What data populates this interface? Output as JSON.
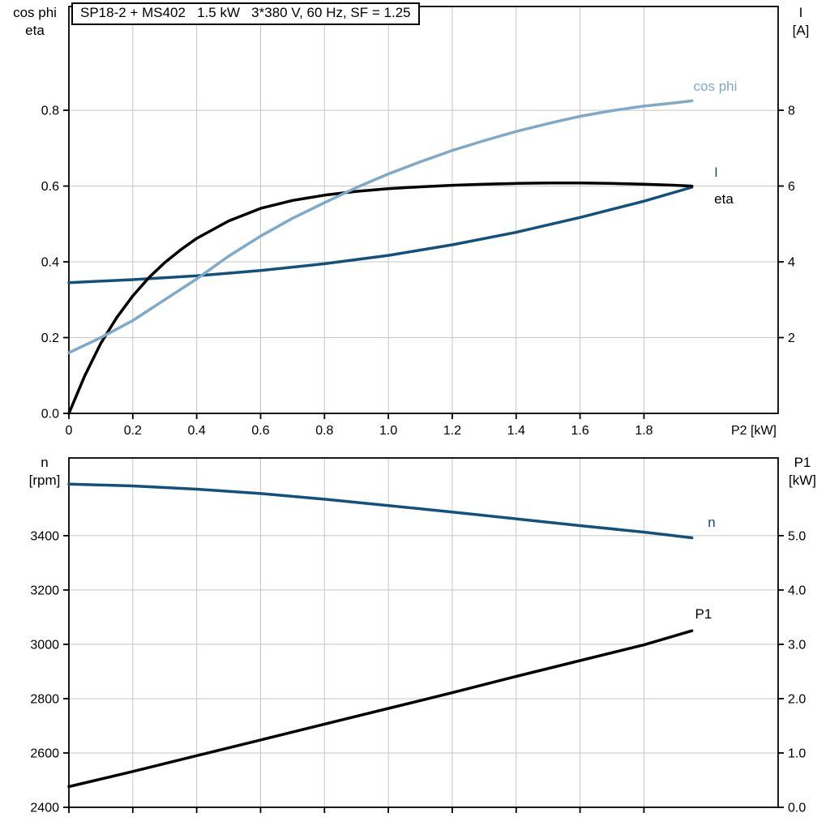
{
  "colors": {
    "light_blue": "#7FA8C9",
    "dark_blue": "#12507E",
    "black": "#000000",
    "grid": "#C6C6C6",
    "frame": "#000000"
  },
  "chart_data": [
    {
      "type": "line",
      "title": "SP18-2 + MS402   1.5 kW   3*380 V, 60 Hz, SF = 1.25",
      "x_label": "P2 [kW]",
      "x_range": [
        0,
        2.22
      ],
      "x_ticks": [
        {
          "v": 0,
          "label": "0"
        },
        {
          "v": 0.2,
          "label": "0.2"
        },
        {
          "v": 0.4,
          "label": "0.4"
        },
        {
          "v": 0.6,
          "label": "0.6"
        },
        {
          "v": 0.8,
          "label": "0.8"
        },
        {
          "v": 1.0,
          "label": "1.0"
        },
        {
          "v": 1.2,
          "label": "1.2"
        },
        {
          "v": 1.4,
          "label": "1.4"
        },
        {
          "v": 1.6,
          "label": "1.6"
        },
        {
          "v": 1.8,
          "label": "1.8"
        }
      ],
      "left_axis": {
        "header": [
          "cos phi",
          "eta"
        ],
        "range": [
          0,
          1.074
        ],
        "ticks": [
          {
            "v": 0.0,
            "label": "0.0"
          },
          {
            "v": 0.2,
            "label": "0.2"
          },
          {
            "v": 0.4,
            "label": "0.4"
          },
          {
            "v": 0.6,
            "label": "0.6"
          },
          {
            "v": 0.8,
            "label": "0.8"
          }
        ]
      },
      "right_axis": {
        "header": [
          "I",
          "[A]"
        ],
        "range": [
          0,
          10.74
        ],
        "ticks": [
          {
            "v": 2,
            "label": "2"
          },
          {
            "v": 4,
            "label": "4"
          },
          {
            "v": 6,
            "label": "6"
          },
          {
            "v": 8,
            "label": "8"
          }
        ]
      },
      "grid": true,
      "legend_position": "inline-labels",
      "series": [
        {
          "name": "I",
          "axis": "right",
          "color": "#12507E",
          "label_at": [
            2.02,
            6.35
          ],
          "points": [
            [
              0,
              3.45
            ],
            [
              0.2,
              3.53
            ],
            [
              0.4,
              3.63
            ],
            [
              0.6,
              3.77
            ],
            [
              0.8,
              3.95
            ],
            [
              1.0,
              4.17
            ],
            [
              1.2,
              4.45
            ],
            [
              1.4,
              4.78
            ],
            [
              1.6,
              5.17
            ],
            [
              1.8,
              5.6
            ],
            [
              1.95,
              5.97
            ]
          ]
        },
        {
          "name": "eta",
          "axis": "left",
          "color": "#000000",
          "label_at": [
            2.02,
            0.565
          ],
          "points": [
            [
              0,
              0
            ],
            [
              0.05,
              0.1
            ],
            [
              0.1,
              0.185
            ],
            [
              0.15,
              0.253
            ],
            [
              0.2,
              0.31
            ],
            [
              0.25,
              0.358
            ],
            [
              0.3,
              0.398
            ],
            [
              0.35,
              0.432
            ],
            [
              0.4,
              0.462
            ],
            [
              0.5,
              0.508
            ],
            [
              0.6,
              0.541
            ],
            [
              0.7,
              0.562
            ],
            [
              0.8,
              0.576
            ],
            [
              0.9,
              0.586
            ],
            [
              1.0,
              0.593
            ],
            [
              1.1,
              0.598
            ],
            [
              1.2,
              0.602
            ],
            [
              1.3,
              0.605
            ],
            [
              1.4,
              0.607
            ],
            [
              1.5,
              0.608
            ],
            [
              1.6,
              0.608
            ],
            [
              1.7,
              0.607
            ],
            [
              1.8,
              0.605
            ],
            [
              1.9,
              0.602
            ],
            [
              1.95,
              0.6
            ]
          ]
        },
        {
          "name": "cos phi",
          "axis": "left",
          "color": "#7FA8C9",
          "label_at": [
            1.955,
            0.862
          ],
          "points": [
            [
              0,
              0.16
            ],
            [
              0.1,
              0.2
            ],
            [
              0.2,
              0.245
            ],
            [
              0.3,
              0.3
            ],
            [
              0.4,
              0.355
            ],
            [
              0.5,
              0.415
            ],
            [
              0.6,
              0.468
            ],
            [
              0.7,
              0.515
            ],
            [
              0.8,
              0.556
            ],
            [
              0.9,
              0.596
            ],
            [
              1.0,
              0.632
            ],
            [
              1.1,
              0.664
            ],
            [
              1.2,
              0.694
            ],
            [
              1.3,
              0.72
            ],
            [
              1.4,
              0.744
            ],
            [
              1.5,
              0.765
            ],
            [
              1.6,
              0.784
            ],
            [
              1.7,
              0.799
            ],
            [
              1.8,
              0.811
            ],
            [
              1.9,
              0.82
            ],
            [
              1.95,
              0.825
            ]
          ]
        }
      ]
    },
    {
      "type": "line",
      "title": "",
      "x_label": "",
      "x_range": [
        0,
        2.22
      ],
      "x_ticks": [
        {
          "v": 0,
          "label": ""
        },
        {
          "v": 0.2,
          "label": ""
        },
        {
          "v": 0.4,
          "label": ""
        },
        {
          "v": 0.6,
          "label": ""
        },
        {
          "v": 0.8,
          "label": ""
        },
        {
          "v": 1.0,
          "label": ""
        },
        {
          "v": 1.2,
          "label": ""
        },
        {
          "v": 1.4,
          "label": ""
        },
        {
          "v": 1.6,
          "label": ""
        },
        {
          "v": 1.8,
          "label": ""
        }
      ],
      "left_axis": {
        "header": [
          "n",
          "[rpm]"
        ],
        "range": [
          2400,
          3686
        ],
        "ticks": [
          {
            "v": 2400,
            "label": "2400"
          },
          {
            "v": 2600,
            "label": "2600"
          },
          {
            "v": 2800,
            "label": "2800"
          },
          {
            "v": 3000,
            "label": "3000"
          },
          {
            "v": 3200,
            "label": "3200"
          },
          {
            "v": 3400,
            "label": "3400"
          }
        ]
      },
      "right_axis": {
        "header": [
          "P1",
          "[kW]"
        ],
        "range": [
          0,
          6.43
        ],
        "ticks": [
          {
            "v": 0.0,
            "label": "0.0"
          },
          {
            "v": 1.0,
            "label": "1.0"
          },
          {
            "v": 2.0,
            "label": "2.0"
          },
          {
            "v": 3.0,
            "label": "3.0"
          },
          {
            "v": 4.0,
            "label": "4.0"
          },
          {
            "v": 5.0,
            "label": "5.0"
          }
        ]
      },
      "grid": true,
      "legend_position": "inline-labels",
      "series": [
        {
          "name": "n",
          "axis": "left",
          "color": "#12507E",
          "label_at": [
            2.0,
            3448
          ],
          "points": [
            [
              0,
              3590
            ],
            [
              0.2,
              3583
            ],
            [
              0.4,
              3571
            ],
            [
              0.6,
              3555
            ],
            [
              0.8,
              3534
            ],
            [
              1.0,
              3511
            ],
            [
              1.2,
              3487
            ],
            [
              1.4,
              3462
            ],
            [
              1.6,
              3437
            ],
            [
              1.8,
              3413
            ],
            [
              1.95,
              3392
            ]
          ]
        },
        {
          "name": "P1",
          "axis": "right",
          "color": "#000000",
          "label_at": [
            1.96,
            3.55
          ],
          "points": [
            [
              0,
              0.38
            ],
            [
              0.2,
              0.66
            ],
            [
              0.4,
              0.95
            ],
            [
              0.6,
              1.24
            ],
            [
              0.8,
              1.53
            ],
            [
              1.0,
              1.82
            ],
            [
              1.2,
              2.11
            ],
            [
              1.4,
              2.41
            ],
            [
              1.6,
              2.7
            ],
            [
              1.8,
              2.99
            ],
            [
              1.95,
              3.25
            ]
          ]
        }
      ]
    }
  ]
}
